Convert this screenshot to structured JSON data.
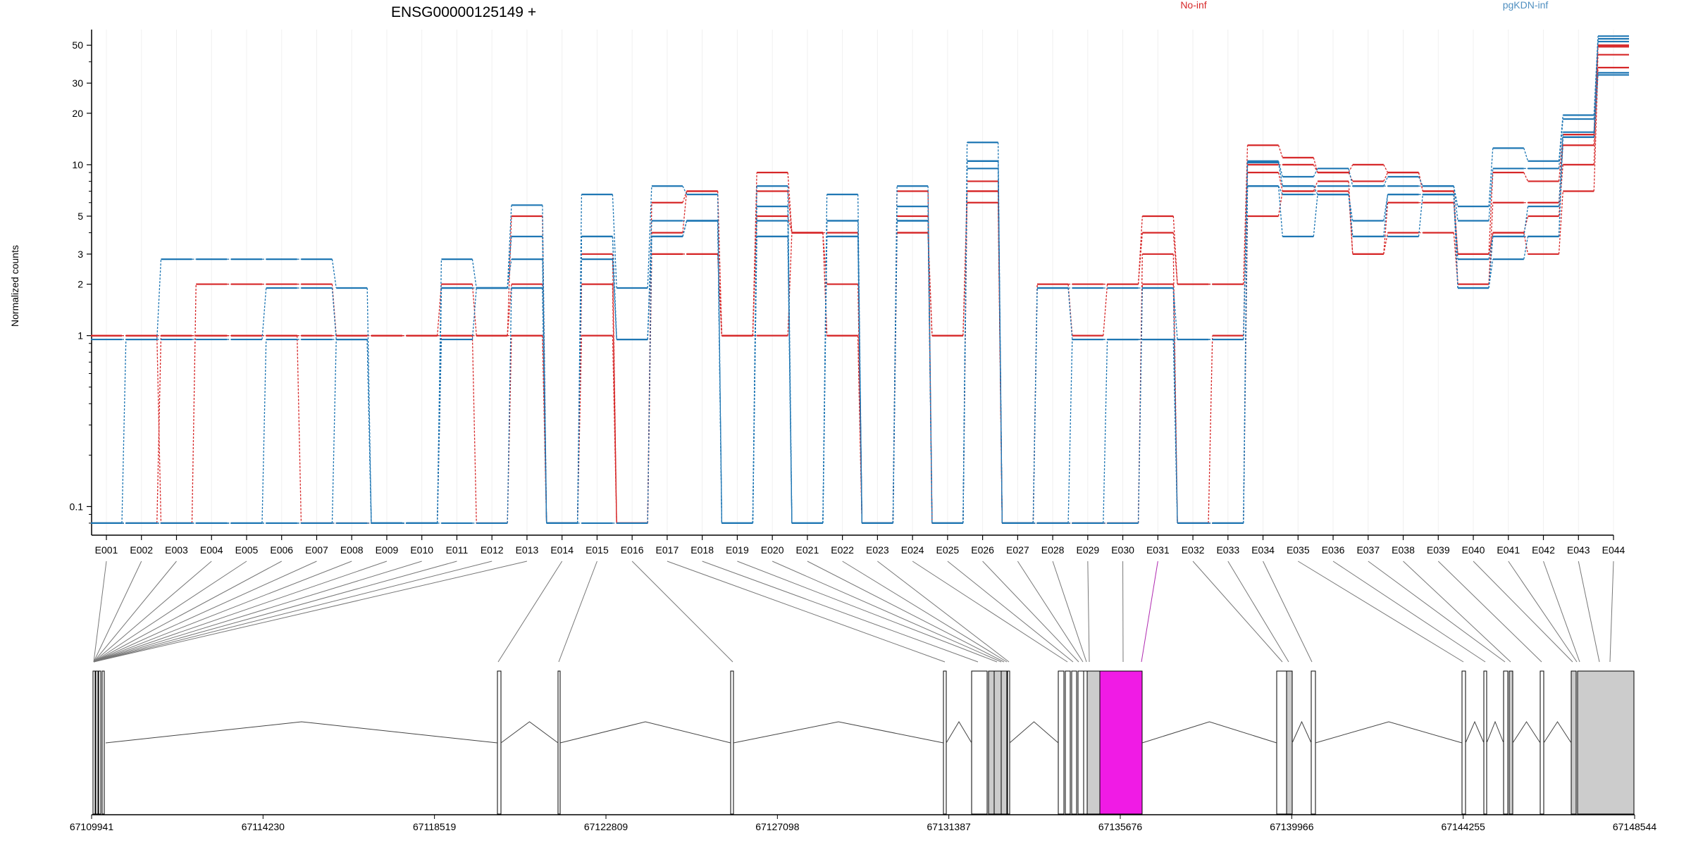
{
  "chart_data": {
    "type": "line",
    "title": "ENSG00000125149 +",
    "ylabel": "Normalized counts",
    "yscale": "log",
    "ylim": [
      0.07,
      60
    ],
    "yticks": [
      "0.1",
      "1",
      "2",
      "3",
      "5",
      "10",
      "20",
      "30",
      "50"
    ],
    "grid": "vertical",
    "legend_position": "top",
    "categories": [
      "E001",
      "E002",
      "E003",
      "E004",
      "E005",
      "E006",
      "E007",
      "E008",
      "E009",
      "E010",
      "E011",
      "E012",
      "E013",
      "E014",
      "E015",
      "E016",
      "E017",
      "E018",
      "E019",
      "E020",
      "E021",
      "E022",
      "E023",
      "E024",
      "E025",
      "E026",
      "E027",
      "E028",
      "E029",
      "E030",
      "E031",
      "E032",
      "E033",
      "E034",
      "E035",
      "E036",
      "E037",
      "E038",
      "E039",
      "E040",
      "E041",
      "E042",
      "E043",
      "E044"
    ],
    "series": [
      {
        "name": "No-inf",
        "color": "#d62728",
        "values": [
          1,
          1,
          0.08,
          2,
          2,
          2,
          2,
          1,
          1,
          1,
          2,
          1,
          5,
          0.08,
          3,
          0.08,
          6,
          7,
          1,
          9,
          4,
          4,
          0.08,
          7,
          0.08,
          8,
          0.08,
          2,
          2,
          2,
          5,
          2,
          2,
          13,
          11,
          9,
          10,
          9,
          7,
          3,
          9,
          8,
          15,
          50
        ]
      },
      {
        "name": "No-inf",
        "color": "#d62728",
        "values": [
          1,
          1,
          1,
          1,
          1,
          1,
          1,
          1,
          1,
          1,
          1,
          1,
          2,
          0.08,
          2,
          0.08,
          4,
          7,
          1,
          7,
          4,
          2,
          0.08,
          5,
          0.08,
          7,
          0.08,
          2,
          1,
          2,
          4,
          2,
          2,
          10,
          10,
          9,
          8,
          9,
          7,
          2,
          6,
          6,
          13,
          49
        ]
      },
      {
        "name": "No-inf",
        "color": "#d62728",
        "values": [
          0.08,
          0.08,
          1,
          1,
          1,
          1,
          0.08,
          0.08,
          0.08,
          0.08,
          1,
          0.08,
          1,
          0.08,
          1,
          0.08,
          3,
          3,
          1,
          5,
          4,
          1,
          0.08,
          4,
          1,
          7,
          0.08,
          0.08,
          0.08,
          0.08,
          3,
          0.08,
          1,
          9,
          7,
          8,
          3,
          6,
          6,
          3,
          4,
          5,
          10,
          44
        ]
      },
      {
        "name": "No-inf",
        "color": "#d62728",
        "values": [
          1,
          1,
          1,
          1,
          1,
          1,
          1,
          1,
          1,
          1,
          1,
          1,
          1,
          0.08,
          2,
          0.08,
          3,
          3,
          1,
          1,
          4,
          1,
          0.08,
          4,
          1,
          6,
          0.08,
          0.08,
          0.08,
          0.08,
          2,
          0.08,
          0.08,
          5,
          7,
          7,
          3,
          4,
          4,
          2,
          4,
          3,
          7,
          37
        ]
      },
      {
        "name": "pgKDN-inf",
        "color": "#1f77b4",
        "values": [
          0.95,
          0.95,
          2.8,
          2.8,
          2.8,
          2.8,
          2.8,
          1.9,
          0.08,
          0.08,
          2.8,
          1.9,
          5.8,
          0.08,
          6.7,
          1.9,
          7.5,
          6.7,
          0.08,
          7.5,
          0.08,
          6.7,
          0.08,
          7.5,
          0.08,
          13.5,
          0.08,
          1.9,
          1.9,
          1.9,
          1.9,
          0.95,
          0.95,
          10.5,
          8.5,
          9.5,
          7.5,
          8.5,
          7.5,
          5.7,
          12.5,
          10.5,
          19.5,
          56.5
        ]
      },
      {
        "name": "pgKDN-inf",
        "color": "#1f77b4",
        "values": [
          0.08,
          0.95,
          0.95,
          0.95,
          0.95,
          1.9,
          1.9,
          0.95,
          0.08,
          0.08,
          1.9,
          1.9,
          3.8,
          0.08,
          3.8,
          0.95,
          4.7,
          4.7,
          0.08,
          5.7,
          0.08,
          4.7,
          0.08,
          5.7,
          0.08,
          10.5,
          0.08,
          1.9,
          0.95,
          0.95,
          0.95,
          0.95,
          0.95,
          10.3,
          7.5,
          7.5,
          7.5,
          7.5,
          7.5,
          4.7,
          9.5,
          9.5,
          18.5,
          54.5
        ]
      },
      {
        "name": "pgKDN-inf",
        "color": "#1f77b4",
        "values": [
          0.08,
          0.08,
          0.08,
          0.08,
          0.08,
          0.95,
          0.95,
          0.95,
          0.08,
          0.08,
          0.95,
          1.9,
          2.8,
          0.08,
          3.8,
          0.95,
          3.8,
          4.7,
          0.08,
          4.7,
          0.08,
          4.7,
          0.08,
          4.7,
          0.08,
          9.5,
          0.08,
          0.08,
          0.95,
          0.95,
          0.95,
          0.08,
          0.08,
          7.5,
          6.7,
          6.7,
          4.7,
          6.7,
          6.7,
          2.8,
          3.8,
          5.7,
          15.5,
          52.5
        ]
      },
      {
        "name": "pgKDN-inf",
        "color": "#1f77b4",
        "values": [
          0.08,
          0.08,
          0.08,
          0.08,
          0.08,
          0.08,
          0.08,
          0.95,
          0.08,
          0.08,
          1.9,
          1.9,
          1.9,
          0.08,
          2.8,
          0.95,
          3.8,
          4.7,
          0.08,
          3.8,
          0.08,
          3.8,
          0.08,
          4.7,
          0.08,
          10.5,
          0.08,
          0.08,
          0.08,
          0.08,
          1.9,
          0.08,
          0.08,
          7.5,
          3.8,
          6.7,
          3.8,
          3.8,
          6.7,
          1.9,
          2.8,
          3.8,
          14.5,
          34.5
        ]
      },
      {
        "name": "pgKDN-inf",
        "color": "#1f77b4",
        "values": [
          0.08,
          0.08,
          0.08,
          0.08,
          0.08,
          0.08,
          0.08,
          0.08,
          0.08,
          0.08,
          0.08,
          0.08,
          1.9,
          0.08,
          0.08,
          0.08,
          3.8,
          4.7,
          0.08,
          3.8,
          0.08,
          3.8,
          0.08,
          4.7,
          0.08,
          10.5,
          0.08,
          0.08,
          0.08,
          0.95,
          0.95,
          0.08,
          0.08,
          10.3,
          7.5,
          6.7,
          3.8,
          6.7,
          6.7,
          1.9,
          3.8,
          3.8,
          14.5,
          33.5
        ]
      }
    ],
    "gene_model": {
      "coordinate_ticks": [
        "67109941",
        "67114230",
        "67118519",
        "67122809",
        "67127098",
        "67131387",
        "67135676",
        "67139966",
        "67144255",
        "67148544"
      ],
      "highlight_exon": "E031",
      "highlight_color": "#f01be5"
    }
  }
}
